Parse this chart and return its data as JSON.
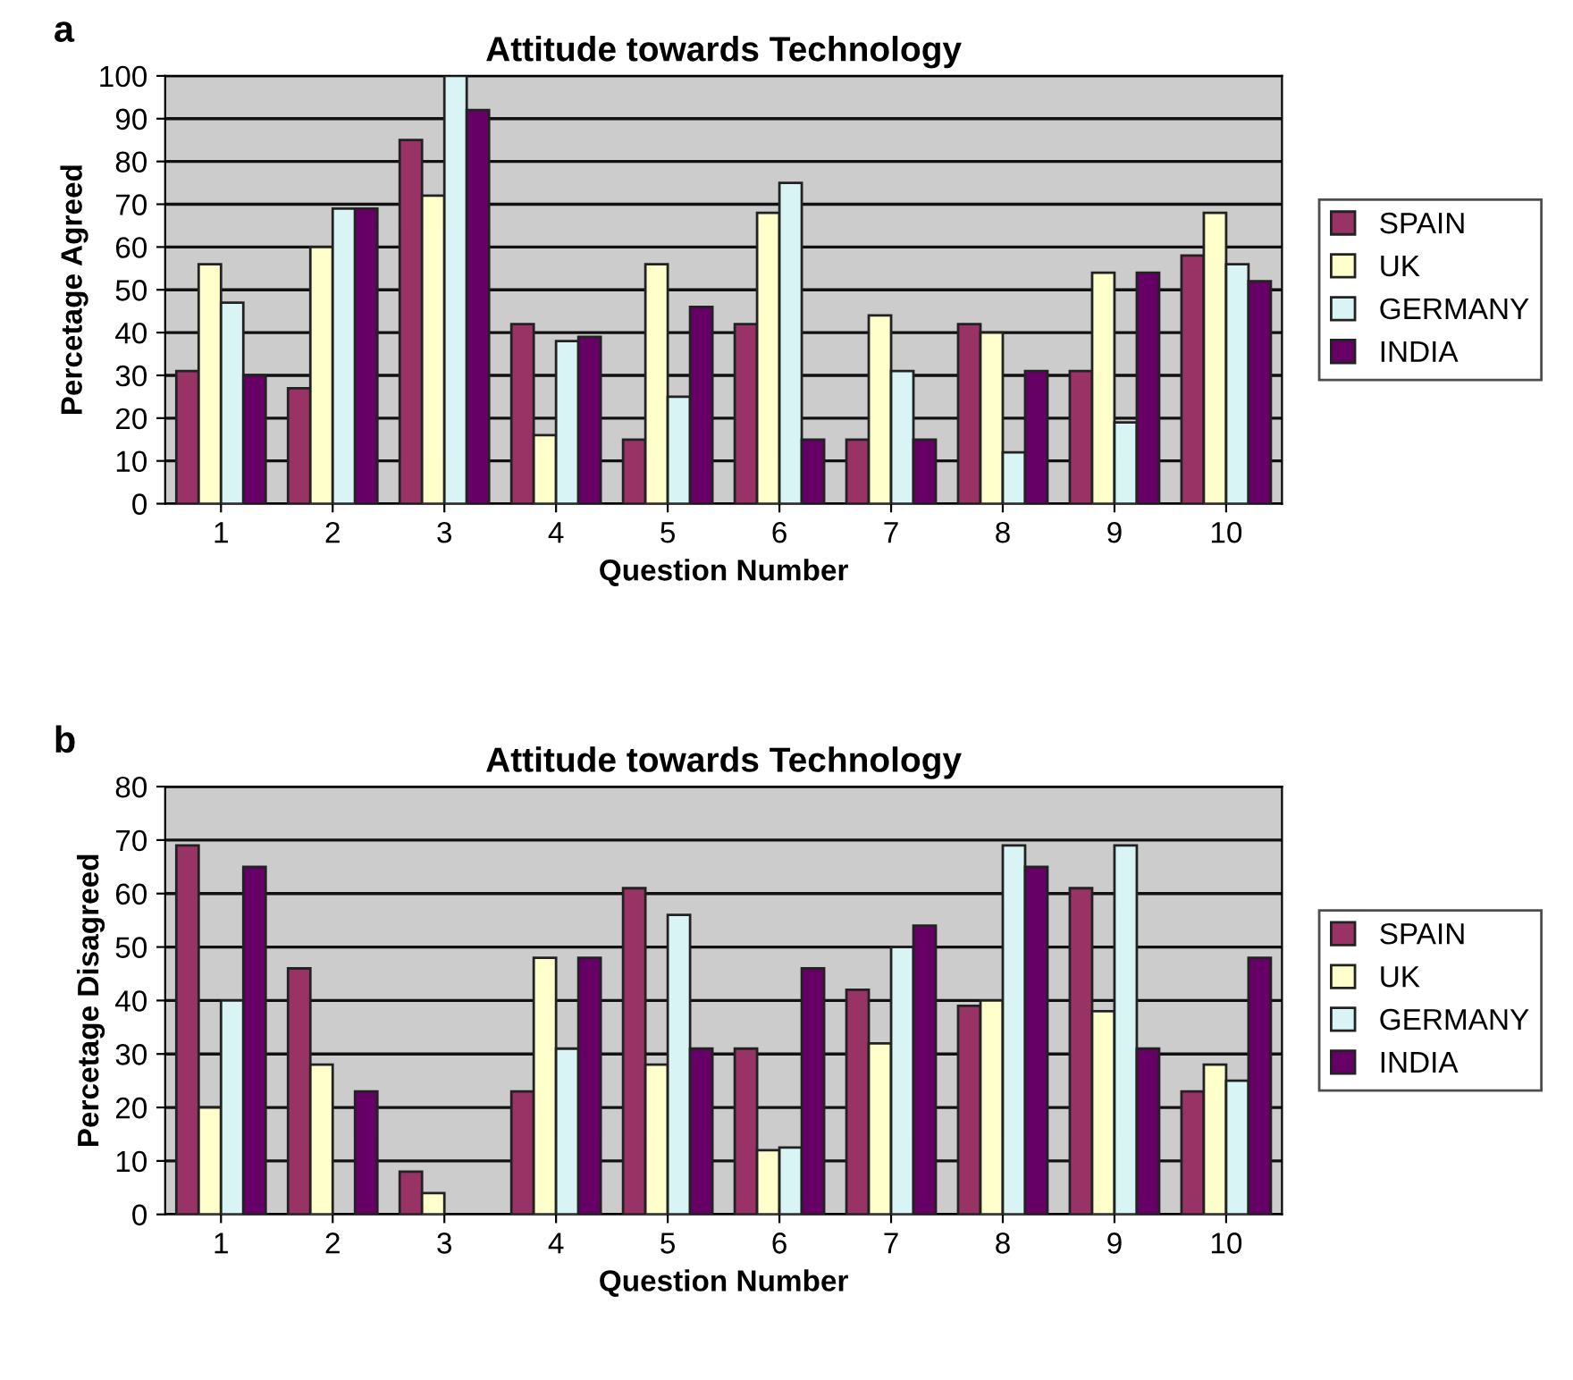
{
  "chart_data": [
    {
      "type": "bar",
      "title": "Attitude towards Technology",
      "xlabel": "Question Number",
      "ylabel": "Percetage Agreed",
      "annotations": [
        "a"
      ],
      "categories": [
        "1",
        "2",
        "3",
        "4",
        "5",
        "6",
        "7",
        "8",
        "9",
        "10"
      ],
      "series": [
        {
          "name": "SPAIN",
          "color": "#993366",
          "values": [
            31,
            27,
            85,
            42,
            15,
            42,
            15,
            42,
            31,
            58
          ]
        },
        {
          "name": "UK",
          "color": "#ffffcc",
          "values": [
            56,
            60,
            72,
            16,
            56,
            68,
            44,
            40,
            54,
            68
          ]
        },
        {
          "name": "GERMANY",
          "color": "#d8f4f4",
          "values": [
            47,
            69,
            100,
            38,
            25,
            75,
            31,
            12,
            19,
            56
          ]
        },
        {
          "name": "INDIA",
          "color": "#660066",
          "values": [
            30,
            69,
            92,
            39,
            46,
            15,
            15,
            31,
            54,
            52
          ]
        }
      ],
      "ylim": [
        0,
        100
      ],
      "yticks": [
        0,
        10,
        20,
        30,
        40,
        50,
        60,
        70,
        80,
        90,
        100
      ],
      "grid": "y",
      "legend": "right"
    },
    {
      "type": "bar",
      "title": "Attitude towards Technology",
      "xlabel": "Question Number",
      "ylabel": "Percetage Disagreed",
      "annotations": [
        "b"
      ],
      "categories": [
        "1",
        "2",
        "3",
        "4",
        "5",
        "6",
        "7",
        "8",
        "9",
        "10"
      ],
      "series": [
        {
          "name": "SPAIN",
          "color": "#993366",
          "values": [
            69,
            46,
            8,
            23,
            61,
            31,
            42,
            39,
            61,
            23
          ]
        },
        {
          "name": "UK",
          "color": "#ffffcc",
          "values": [
            20,
            28,
            4,
            48,
            28,
            12,
            32,
            40,
            38,
            28
          ]
        },
        {
          "name": "GERMANY",
          "color": "#d8f4f4",
          "values": [
            40,
            null,
            null,
            31,
            56,
            12.5,
            50,
            69,
            69,
            25
          ]
        },
        {
          "name": "INDIA",
          "color": "#660066",
          "values": [
            65,
            23,
            null,
            48,
            31,
            46,
            54,
            65,
            31,
            48
          ]
        }
      ],
      "ylim": [
        0,
        80
      ],
      "yticks": [
        0,
        10,
        20,
        30,
        40,
        50,
        60,
        70,
        80
      ],
      "grid": "y",
      "legend": "right"
    }
  ]
}
